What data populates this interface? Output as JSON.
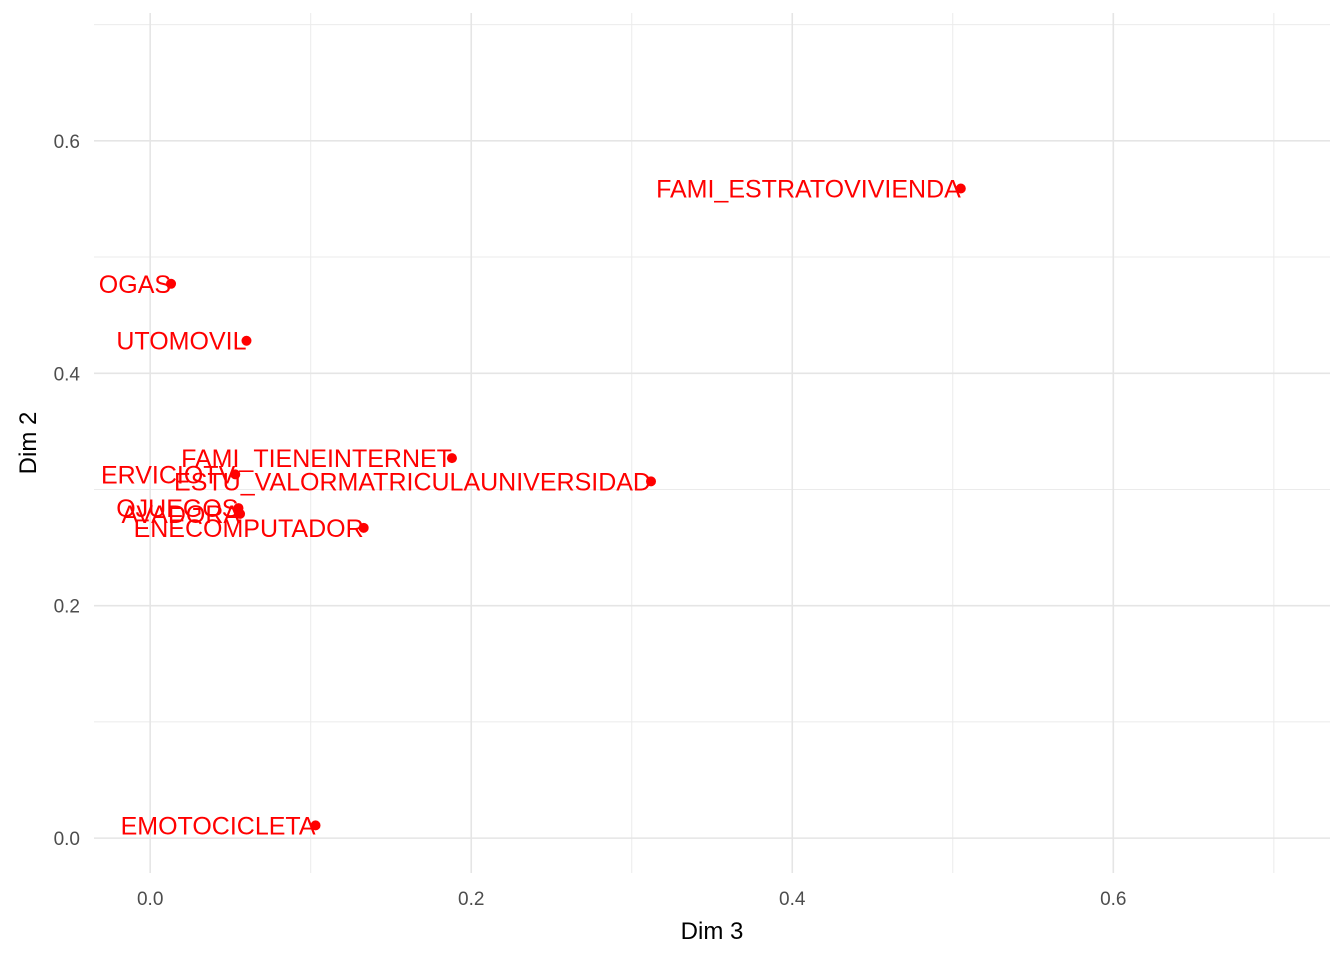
{
  "chart_data": {
    "type": "scatter",
    "title": "",
    "xlabel": "Dim 3",
    "ylabel": "Dim 2",
    "xlim": [
      -0.035,
      0.735
    ],
    "ylim": [
      -0.03,
      0.71
    ],
    "grid": true,
    "x_ticks": [
      {
        "value": 0.0,
        "label": "0.0"
      },
      {
        "value": 0.2,
        "label": "0.2"
      },
      {
        "value": 0.4,
        "label": "0.4"
      },
      {
        "value": 0.6,
        "label": "0.6"
      }
    ],
    "y_ticks": [
      {
        "value": 0.0,
        "label": "0.0"
      },
      {
        "value": 0.2,
        "label": "0.2"
      },
      {
        "value": 0.4,
        "label": "0.4"
      },
      {
        "value": 0.6,
        "label": "0.6"
      }
    ],
    "point_color": "#ff0000",
    "points": [
      {
        "label": "FAMI_ESTRATOVIVIENDA",
        "x": 0.505,
        "y": 0.559
      },
      {
        "label": "FAMI_TIENEINTERNET",
        "x": 0.188,
        "y": 0.327
      },
      {
        "label": "ESTU_VALORMATRICULAUNIVERSIDAD",
        "x": 0.312,
        "y": 0.307
      },
      {
        "label": "OGAS",
        "x": 0.013,
        "y": 0.477
      },
      {
        "label": "UTOMOVIL",
        "x": 0.06,
        "y": 0.428
      },
      {
        "label": "ERVICIOTV",
        "x": 0.053,
        "y": 0.313
      },
      {
        "label": "OJUEGOS",
        "x": 0.055,
        "y": 0.284
      },
      {
        "label": "AVADORA",
        "x": 0.056,
        "y": 0.279
      },
      {
        "label": "ENECOMPUTADOR",
        "x": 0.133,
        "y": 0.267
      },
      {
        "label": "EMOTOCICLETA",
        "x": 0.103,
        "y": 0.011
      }
    ]
  }
}
